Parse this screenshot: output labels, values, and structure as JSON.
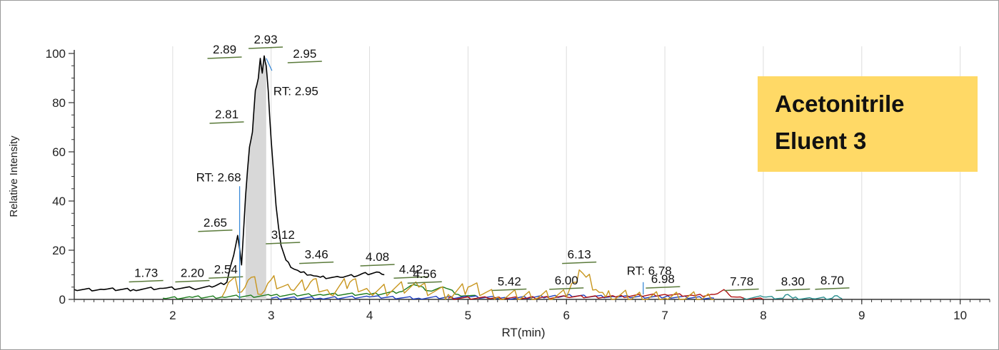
{
  "colors": {
    "tic": "#000000",
    "green": "#1a7a1a",
    "gold": "#c8961e",
    "blue": "#1f3fbf",
    "red": "#b01010",
    "teal": "#2a8f8f",
    "fill": "#d8d8d8",
    "label_line": "#5a7a3a",
    "rt_marker": "#3a8ad8",
    "box": "#ffd966"
  },
  "overlay": {
    "line1": "Acetonitrile",
    "line2": "Eluent 3"
  },
  "chart_data": {
    "type": "line",
    "xlabel": "RT(min)",
    "ylabel": "Relative Intensity",
    "xlim": [
      1.0,
      10.3
    ],
    "ylim": [
      0,
      100
    ],
    "x_ticks": [
      "2",
      "3",
      "4",
      "5",
      "6",
      "7",
      "8",
      "9",
      "10"
    ],
    "y_ticks": [
      "0",
      "20",
      "40",
      "60",
      "80",
      "100"
    ],
    "grid": true,
    "series": [
      {
        "color_key": "tic",
        "x": [
          1.0,
          1.3,
          1.6,
          1.9,
          2.2,
          2.4,
          2.55,
          2.62,
          2.66,
          2.7,
          2.74,
          2.78,
          2.81,
          2.84,
          2.87,
          2.89,
          2.91,
          2.93,
          2.95,
          2.97,
          3.0,
          3.05,
          3.1,
          3.15,
          3.2,
          3.3,
          3.4,
          3.5,
          3.7,
          3.9,
          4.1,
          4.15
        ],
        "y": [
          4,
          4,
          4,
          4.5,
          4.5,
          5,
          7,
          18,
          26,
          14,
          42,
          62,
          68,
          85,
          90,
          98,
          92,
          99,
          95,
          85,
          65,
          38,
          22,
          16,
          13,
          11,
          10,
          9,
          9,
          10,
          11,
          10
        ]
      },
      {
        "color_key": "green",
        "x": [
          1.9,
          2.2,
          2.5,
          3.0,
          3.5,
          4.0,
          4.3,
          4.45,
          4.6,
          4.75,
          4.9,
          5.1
        ],
        "y": [
          0.5,
          0.8,
          1,
          1.5,
          2,
          2,
          3,
          6,
          3.5,
          5,
          2,
          1
        ]
      },
      {
        "color_key": "gold",
        "x": [
          2.5,
          2.6,
          2.7,
          2.8,
          2.9,
          3.0,
          3.2,
          3.4,
          3.6,
          3.8,
          4.0,
          4.5,
          4.8,
          5.0,
          5.3,
          6.0,
          6.08,
          6.13,
          6.2,
          6.3,
          6.4,
          7.0,
          7.5
        ],
        "y": [
          1,
          8,
          3,
          9,
          2,
          8,
          4,
          7,
          2,
          7,
          3,
          5,
          2,
          5,
          1,
          1,
          7,
          12,
          9,
          4,
          1,
          0.5,
          0
        ]
      },
      {
        "color_key": "blue",
        "x": [
          3.0,
          3.5,
          4.0,
          4.5,
          5.0,
          5.4,
          5.8,
          6.0,
          6.5,
          7.0,
          7.5
        ],
        "y": [
          0.5,
          0.5,
          1,
          0.5,
          1,
          0.5,
          1,
          1.5,
          1,
          1,
          0.5
        ]
      },
      {
        "color_key": "red",
        "x": [
          4.8,
          5.2,
          5.6,
          6.0,
          6.5,
          7.0,
          7.3,
          7.5,
          7.6,
          7.65,
          7.7,
          7.8,
          8.0
        ],
        "y": [
          0.5,
          0.5,
          0.5,
          1,
          1,
          2,
          1.5,
          2,
          4,
          2,
          1,
          0.5,
          0
        ]
      },
      {
        "color_key": "teal",
        "x": [
          7.8,
          8.0,
          8.2,
          8.25,
          8.3,
          8.5,
          8.7,
          8.75,
          8.8
        ],
        "y": [
          0.5,
          1,
          0.5,
          2,
          0.5,
          0.3,
          0.5,
          1.5,
          0.3
        ]
      }
    ],
    "annotations": [
      {
        "text": "1.73",
        "x": 1.73,
        "y": 4.5
      },
      {
        "text": "2.20",
        "x": 2.2,
        "y": 4.5
      },
      {
        "text": "2.54",
        "x": 2.54,
        "y": 6
      },
      {
        "text": "2.65",
        "x": 2.65,
        "y": 25
      },
      {
        "text": "2.81",
        "x": 2.81,
        "y": 69
      },
      {
        "text": "2.89",
        "x": 2.89,
        "y": 98
      },
      {
        "text": "2.93",
        "x": 2.93,
        "y": 100
      },
      {
        "text": "2.95",
        "x": 2.95,
        "y": 96
      },
      {
        "text": "3.12",
        "x": 3.12,
        "y": 20
      },
      {
        "text": "3.46",
        "x": 3.46,
        "y": 12
      },
      {
        "text": "4.08",
        "x": 4.08,
        "y": 11
      },
      {
        "text": "4.42",
        "x": 4.42,
        "y": 6
      },
      {
        "text": "4.56",
        "x": 4.56,
        "y": 4
      },
      {
        "text": "5.42",
        "x": 5.42,
        "y": 1
      },
      {
        "text": "6.00",
        "x": 6.0,
        "y": 1.5
      },
      {
        "text": "6.13",
        "x": 6.13,
        "y": 12
      },
      {
        "text": "6.98",
        "x": 6.98,
        "y": 2
      },
      {
        "text": "7.78",
        "x": 7.78,
        "y": 1
      },
      {
        "text": "8.30",
        "x": 8.3,
        "y": 1
      },
      {
        "text": "8.70",
        "x": 8.7,
        "y": 1.5
      }
    ],
    "rt_markers": [
      {
        "text": "RT: 2.68",
        "x": 2.68
      },
      {
        "text": "RT: 2.95",
        "x": 2.95
      },
      {
        "text": "RT: 6.78",
        "x": 6.78
      }
    ]
  }
}
